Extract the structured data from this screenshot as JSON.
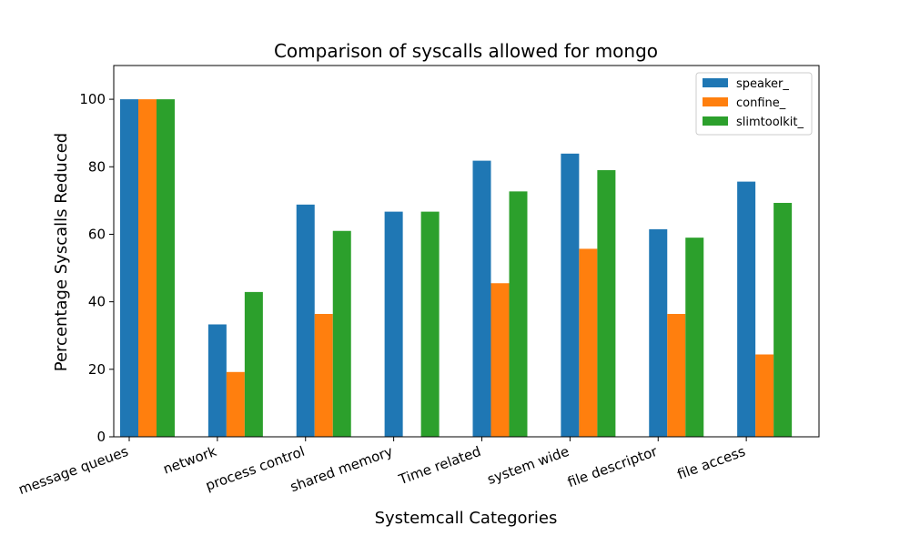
{
  "chart_data": {
    "type": "bar",
    "title": "Comparison of syscalls allowed for mongo",
    "xlabel": "Systemcall Categories",
    "ylabel": "Percentage Syscalls Reduced",
    "categories": [
      "message queues",
      "network",
      "process control",
      "shared memory",
      "Time related",
      "system wide",
      "file descriptor",
      "file access"
    ],
    "series": [
      {
        "name": "speaker_",
        "color": "#1f77b4",
        "values": [
          100,
          33.3,
          68.8,
          66.7,
          81.8,
          83.9,
          61.5,
          75.6
        ]
      },
      {
        "name": "confine_",
        "color": "#ff7f0e",
        "values": [
          100,
          19.2,
          36.4,
          0,
          45.5,
          55.7,
          36.4,
          24.4
        ]
      },
      {
        "name": "slimtoolkit_",
        "color": "#2ca02c",
        "values": [
          100,
          42.9,
          61.0,
          66.7,
          72.7,
          79.0,
          59.0,
          69.3
        ]
      }
    ],
    "ylim": [
      0,
      110
    ],
    "yticks": [
      0,
      20,
      40,
      60,
      80,
      100
    ],
    "legend_position": "top-right",
    "grid": false
  }
}
